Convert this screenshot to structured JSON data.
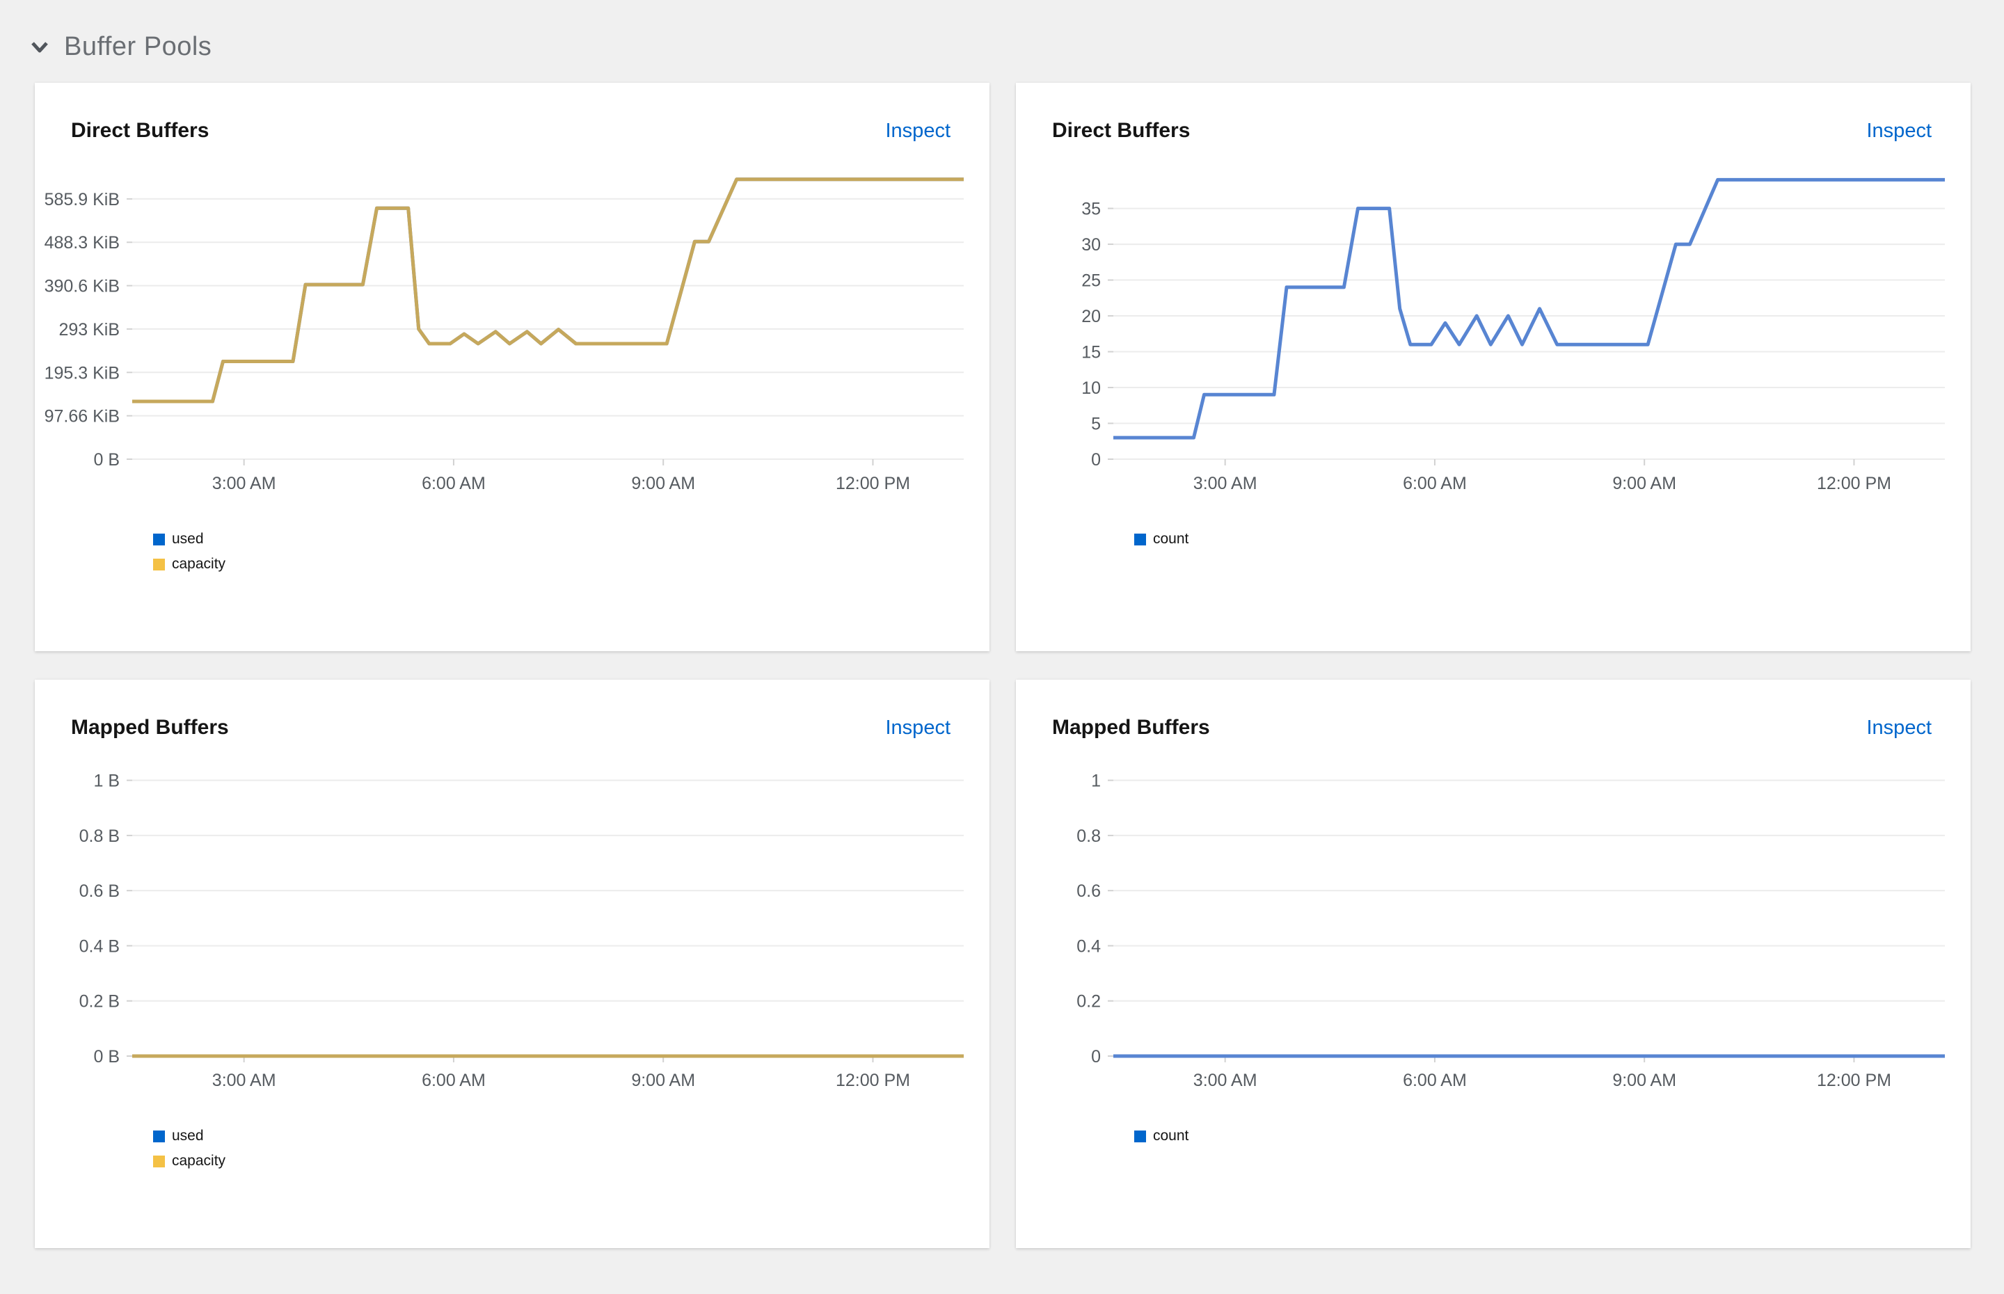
{
  "ui": {
    "section_title": "Buffer Pools",
    "inspect_label": "Inspect",
    "colors": {
      "page_bg": "#f0f0f0",
      "card_bg": "#ffffff",
      "link_blue": "#0066cc",
      "section_title_gray": "#6a6e73",
      "axis_label_gray": "#565b60",
      "gridline": "#ececec",
      "axis_tick": "#d2d2d2",
      "legend_text": "#151515"
    },
    "icons": {
      "section_toggle": "chevron-down-icon"
    }
  },
  "chart_data": [
    {
      "type": "line",
      "title": "Direct Buffers",
      "grid": "horizontal",
      "legend_position": "bottom-left",
      "x_axis": {
        "unit": "time of day",
        "range": [
          1.4,
          13.3
        ],
        "ticks": [
          3,
          6,
          9,
          12
        ],
        "tick_labels": [
          "3:00 AM",
          "6:00 AM",
          "9:00 AM",
          "12:00 PM"
        ]
      },
      "y_axis": {
        "unit": "KiB",
        "range": [
          0,
          650
        ],
        "ticks": [
          0,
          97.66,
          195.3,
          293,
          390.6,
          488.3,
          585.9
        ],
        "tick_labels": [
          "0 B",
          "97.66 KiB",
          "195.3 KiB",
          "293 KiB",
          "390.6 KiB",
          "488.3 KiB",
          "585.9 KiB"
        ]
      },
      "legend": [
        {
          "label": "used",
          "color": "#0066CC"
        },
        {
          "label": "capacity",
          "color": "#F4C145"
        }
      ],
      "series": [
        {
          "name": "used",
          "line_color": "#5885D2",
          "points": [
            [
              1.4,
              130
            ],
            [
              2.55,
              130
            ],
            [
              2.7,
              220
            ],
            [
              3.7,
              220
            ],
            [
              3.88,
              393
            ],
            [
              4.7,
              393
            ],
            [
              4.9,
              565
            ],
            [
              5.35,
              565
            ],
            [
              5.5,
              293
            ],
            [
              5.65,
              260
            ],
            [
              5.95,
              260
            ],
            [
              6.15,
              282
            ],
            [
              6.35,
              260
            ],
            [
              6.6,
              287
            ],
            [
              6.8,
              260
            ],
            [
              7.05,
              287
            ],
            [
              7.25,
              260
            ],
            [
              7.5,
              292
            ],
            [
              7.75,
              260
            ],
            [
              9.05,
              260
            ],
            [
              9.45,
              490
            ],
            [
              9.65,
              490
            ],
            [
              10.05,
              630
            ],
            [
              13.3,
              630
            ]
          ]
        },
        {
          "name": "capacity",
          "line_color": "#C6A85C",
          "points": [
            [
              1.4,
              130
            ],
            [
              2.55,
              130
            ],
            [
              2.7,
              220
            ],
            [
              3.7,
              220
            ],
            [
              3.88,
              393
            ],
            [
              4.7,
              393
            ],
            [
              4.9,
              565
            ],
            [
              5.35,
              565
            ],
            [
              5.5,
              293
            ],
            [
              5.65,
              260
            ],
            [
              5.95,
              260
            ],
            [
              6.15,
              282
            ],
            [
              6.35,
              260
            ],
            [
              6.6,
              287
            ],
            [
              6.8,
              260
            ],
            [
              7.05,
              287
            ],
            [
              7.25,
              260
            ],
            [
              7.5,
              292
            ],
            [
              7.75,
              260
            ],
            [
              9.05,
              260
            ],
            [
              9.45,
              490
            ],
            [
              9.65,
              490
            ],
            [
              10.05,
              630
            ],
            [
              13.3,
              630
            ]
          ]
        }
      ]
    },
    {
      "type": "line",
      "title": "Direct Buffers",
      "grid": "horizontal",
      "legend_position": "bottom-left",
      "x_axis": {
        "unit": "time of day",
        "range": [
          1.4,
          13.3
        ],
        "ticks": [
          3,
          6,
          9,
          12
        ],
        "tick_labels": [
          "3:00 AM",
          "6:00 AM",
          "9:00 AM",
          "12:00 PM"
        ]
      },
      "y_axis": {
        "unit": "count",
        "range": [
          0,
          40.3
        ],
        "ticks": [
          0,
          5,
          10,
          15,
          20,
          25,
          30,
          35
        ],
        "tick_labels": [
          "0",
          "5",
          "10",
          "15",
          "20",
          "25",
          "30",
          "35"
        ]
      },
      "legend": [
        {
          "label": "count",
          "color": "#0066CC"
        }
      ],
      "series": [
        {
          "name": "count",
          "line_color": "#5885D2",
          "points": [
            [
              1.4,
              3
            ],
            [
              2.55,
              3
            ],
            [
              2.7,
              9
            ],
            [
              3.7,
              9
            ],
            [
              3.88,
              24
            ],
            [
              4.7,
              24
            ],
            [
              4.9,
              35
            ],
            [
              5.35,
              35
            ],
            [
              5.5,
              21
            ],
            [
              5.65,
              16
            ],
            [
              5.95,
              16
            ],
            [
              6.15,
              19
            ],
            [
              6.35,
              16
            ],
            [
              6.6,
              20
            ],
            [
              6.8,
              16
            ],
            [
              7.05,
              20
            ],
            [
              7.25,
              16
            ],
            [
              7.5,
              21
            ],
            [
              7.75,
              16
            ],
            [
              9.05,
              16
            ],
            [
              9.45,
              30
            ],
            [
              9.65,
              30
            ],
            [
              10.05,
              39
            ],
            [
              13.3,
              39
            ]
          ]
        }
      ]
    },
    {
      "type": "line",
      "title": "Mapped Buffers",
      "grid": "horizontal",
      "legend_position": "bottom-left",
      "x_axis": {
        "unit": "time of day",
        "range": [
          1.4,
          13.3
        ],
        "ticks": [
          3,
          6,
          9,
          12
        ],
        "tick_labels": [
          "3:00 AM",
          "6:00 AM",
          "9:00 AM",
          "12:00 PM"
        ]
      },
      "y_axis": {
        "unit": "bytes",
        "range": [
          0,
          1.047
        ],
        "ticks": [
          0,
          0.2,
          0.4,
          0.6,
          0.8,
          1
        ],
        "tick_labels": [
          "0 B",
          "0.2 B",
          "0.4 B",
          "0.6 B",
          "0.8 B",
          "1 B"
        ]
      },
      "legend": [
        {
          "label": "used",
          "color": "#0066CC"
        },
        {
          "label": "capacity",
          "color": "#F4C145"
        }
      ],
      "series": [
        {
          "name": "used",
          "line_color": "#5885D2",
          "points": [
            [
              1.4,
              0
            ],
            [
              13.3,
              0
            ]
          ]
        },
        {
          "name": "capacity",
          "line_color": "#C6A85C",
          "points": [
            [
              1.4,
              0
            ],
            [
              13.3,
              0
            ]
          ]
        }
      ]
    },
    {
      "type": "line",
      "title": "Mapped Buffers",
      "grid": "horizontal",
      "legend_position": "bottom-left",
      "x_axis": {
        "unit": "time of day",
        "range": [
          1.4,
          13.3
        ],
        "ticks": [
          3,
          6,
          9,
          12
        ],
        "tick_labels": [
          "3:00 AM",
          "6:00 AM",
          "9:00 AM",
          "12:00 PM"
        ]
      },
      "y_axis": {
        "unit": "count",
        "range": [
          0,
          1.047
        ],
        "ticks": [
          0,
          0.2,
          0.4,
          0.6,
          0.8,
          1
        ],
        "tick_labels": [
          "0",
          "0.2",
          "0.4",
          "0.6",
          "0.8",
          "1"
        ]
      },
      "legend": [
        {
          "label": "count",
          "color": "#0066CC"
        }
      ],
      "series": [
        {
          "name": "count",
          "line_color": "#5885D2",
          "points": [
            [
              1.4,
              0
            ],
            [
              13.3,
              0
            ]
          ]
        }
      ]
    }
  ]
}
